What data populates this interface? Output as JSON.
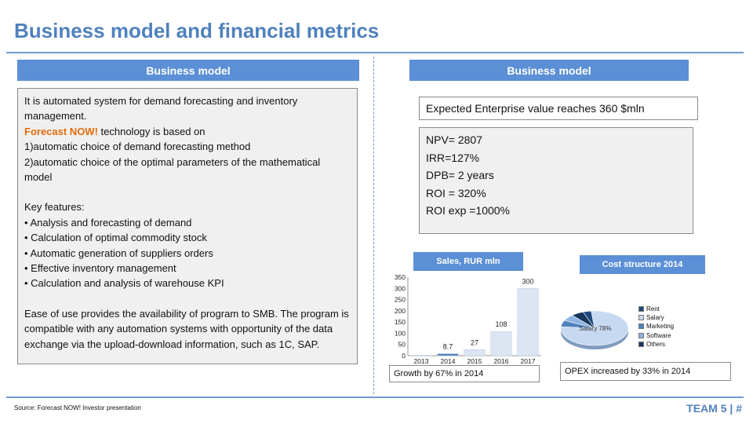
{
  "title": "Business model and financial metrics",
  "left_header": "Business model",
  "right_header": "Business model",
  "left_text": {
    "intro": "It is automated system for demand forecasting and inventory management.",
    "brand": "Forecast NOW!",
    "tech": " technology  is based on",
    "basis": [
      "1)automatic choice of demand forecasting method",
      "2)automatic choice of the optimal parameters of the mathematical model"
    ],
    "features_title": "Key features:",
    "features": [
      "• Analysis and forecasting of demand",
      "• Calculation of optimal commodity stock",
      "• Automatic generation of suppliers orders",
      "• Effective inventory management",
      "• Calculation and analysis of warehouse KPI"
    ],
    "outro": "Ease of use provides the availability of program to SMB. The program is compatible with any automation systems with opportunity of the data exchange via the upload-download information, such as 1C, SAP."
  },
  "enterprise_value": "Expected Enterprise value reaches 360 $mln",
  "metrics": [
    " NPV= 2807",
    "IRR=127%",
    "DPB= 2 years",
    "ROI = 320%",
    "ROI exp =1000%"
  ],
  "sales_header": "Sales, RUR mln",
  "cost_header": "Cost structure 2014",
  "sales_note": "Growth by 67%  in 2014",
  "opex_note": "OPEX increased by 33%  in 2014",
  "chart_data": [
    {
      "type": "bar",
      "title": "Sales, RUR mln",
      "categories": [
        "2013",
        "2014",
        "2015",
        "2016",
        "2017"
      ],
      "values": [
        0,
        8.7,
        27,
        108,
        300
      ],
      "data_labels": [
        "",
        "8.7",
        "27",
        "108",
        "300"
      ],
      "ylim": [
        0,
        350
      ],
      "yticks": [
        0,
        50,
        100,
        150,
        200,
        250,
        300,
        350
      ],
      "colors": {
        "bar": "#dce6f2",
        "bar_2014": "#4f81bd"
      },
      "grid": false
    },
    {
      "type": "pie",
      "title": "Cost structure 2014",
      "labels": [
        "Rent",
        "Salary",
        "Marketing",
        "Software",
        "Others"
      ],
      "values": [
        4,
        78,
        6,
        6,
        6
      ],
      "slice_label": "Salary 78%",
      "colors": [
        "#1f497d",
        "#c6d9f1",
        "#4f81bd",
        "#8eb4e3",
        "#17375e"
      ],
      "legend": "right"
    }
  ],
  "footer": {
    "source": "Source: Forecast NOW! Investor presentation",
    "team": "TEAM 5  |  #"
  }
}
